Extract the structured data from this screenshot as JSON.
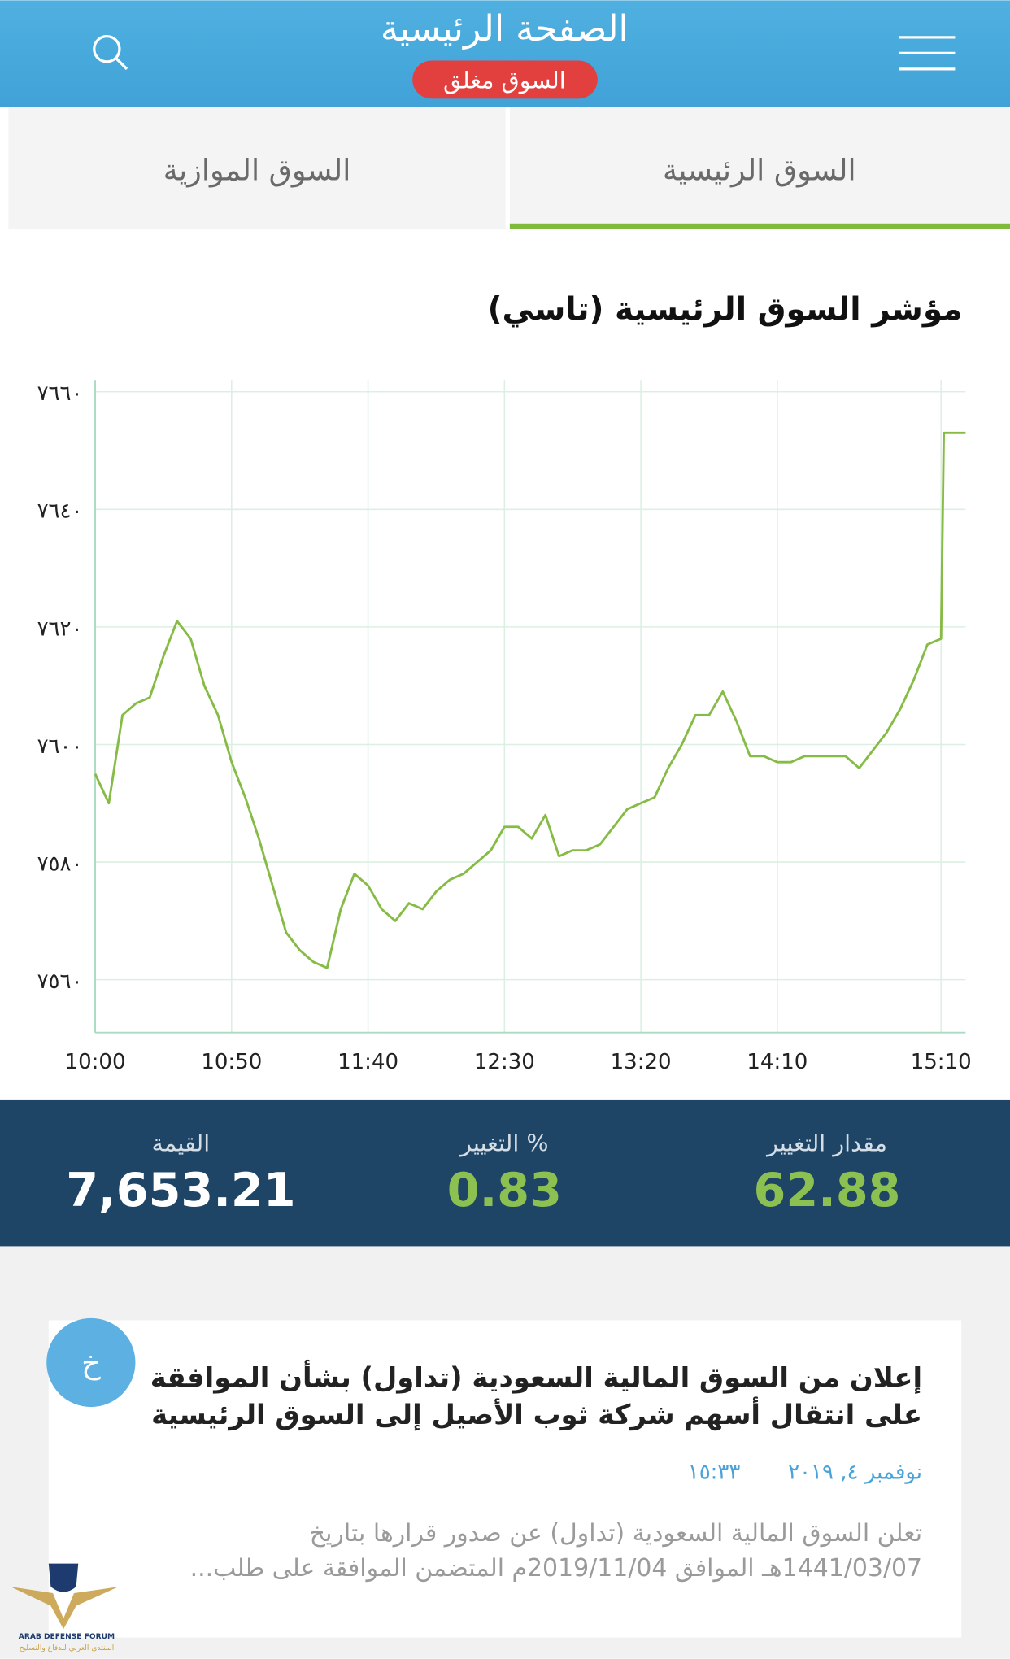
{
  "header": {
    "title": "الصفحة الرئيسية",
    "status": "السوق مغلق"
  },
  "tabs": [
    "السوق الرئيسية",
    "السوق الموازية"
  ],
  "chart_data": {
    "type": "line",
    "title": "مؤشر السوق الرئيسية (تاسي)",
    "color": "#86bb46",
    "grid": true,
    "x": [
      "10:00",
      "10:05",
      "10:10",
      "10:15",
      "10:20",
      "10:25",
      "10:30",
      "10:35",
      "10:40",
      "10:45",
      "10:50",
      "10:55",
      "11:00",
      "11:05",
      "11:10",
      "11:15",
      "11:20",
      "11:25",
      "11:30",
      "11:35",
      "11:40",
      "11:45",
      "11:50",
      "11:55",
      "12:00",
      "12:05",
      "12:10",
      "12:15",
      "12:20",
      "12:25",
      "12:30",
      "12:35",
      "12:40",
      "12:45",
      "12:50",
      "12:55",
      "13:00",
      "13:05",
      "13:10",
      "13:15",
      "13:20",
      "13:25",
      "13:30",
      "13:35",
      "13:40",
      "13:45",
      "13:50",
      "13:55",
      "14:00",
      "14:05",
      "14:10",
      "14:15",
      "14:20",
      "14:25",
      "14:30",
      "14:35",
      "14:40",
      "14:45",
      "14:50",
      "14:55",
      "15:00",
      "15:05",
      "15:10",
      "15:11",
      "15:15",
      "15:19"
    ],
    "values": [
      7595,
      7590,
      7605,
      7607,
      7608,
      7615,
      7621,
      7618,
      7610,
      7605,
      7597,
      7591,
      7584,
      7576,
      7568,
      7565,
      7563,
      7562,
      7572,
      7578,
      7576,
      7572,
      7570,
      7573,
      7572,
      7575,
      7577,
      7578,
      7580,
      7582,
      7586,
      7586,
      7584,
      7588,
      7581,
      7582,
      7582,
      7583,
      7586,
      7589,
      7590,
      7591,
      7596,
      7600,
      7605,
      7605,
      7609,
      7604,
      7598,
      7598,
      7597,
      7597,
      7598,
      7598,
      7598,
      7598,
      7596,
      7599,
      7602,
      7606,
      7611,
      7617,
      7618,
      7653,
      7653,
      7653
    ],
    "xlim": [
      "10:00",
      "15:19"
    ],
    "xticks": [
      "10:00",
      "10:50",
      "11:40",
      "12:30",
      "13:20",
      "14:10",
      "15:10"
    ],
    "ylim": [
      7551,
      7662
    ],
    "yticks": [
      {
        "value": 7560,
        "label": "٧٥٦٠"
      },
      {
        "value": 7580,
        "label": "٧٥٨٠"
      },
      {
        "value": 7600,
        "label": "٧٦٠٠"
      },
      {
        "value": 7620,
        "label": "٧٦٢٠"
      },
      {
        "value": 7640,
        "label": "٧٦٤٠"
      },
      {
        "value": 7660,
        "label": "٧٦٦٠"
      }
    ]
  },
  "stats": [
    {
      "label": "مقدار التغيير",
      "value": "62.88"
    },
    {
      "label": "% التغيير",
      "value": "0.83"
    },
    {
      "label": "القيمة",
      "value": "7,653.21"
    }
  ],
  "news": {
    "icon": "خ",
    "title": [
      "إعلان من السوق المالية السعودية (تداول) بشأن الموافقة",
      "على انتقال أسهم شركة ثوب الأصيل إلى السوق الرئيسية"
    ],
    "date": "نوفمبر ٤, ٢٠١٩",
    "time": "١٥:٣٣",
    "body": [
      "تعلن السوق المالية السعودية (تداول) عن صدور قرارها بتاريخ",
      "1441/03/07هـ الموافق 2019/11/04م المتضمن الموافقة على طلب..."
    ]
  },
  "watermark": {
    "name": "ARAB DEFENSE FORUM",
    "subtitle": "المنتدى العربي للدفاع والتسليح"
  }
}
